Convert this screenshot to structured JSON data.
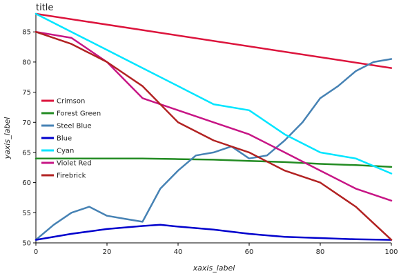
{
  "chart_data": {
    "type": "line",
    "title": "title",
    "xlabel": "xaxis_label",
    "ylabel": "yaxis_label",
    "xlim": [
      0,
      100
    ],
    "ylim": [
      50,
      88
    ],
    "x_ticks": [
      0,
      20,
      40,
      60,
      80,
      100
    ],
    "y_ticks": [
      50,
      55,
      60,
      65,
      70,
      75,
      80,
      85
    ],
    "grid": false,
    "legend_position": "left",
    "series": [
      {
        "name": "Crimson",
        "color": "#dc143c",
        "x": [
          0,
          100
        ],
        "y": [
          88,
          79
        ]
      },
      {
        "name": "Forest Green",
        "color": "#228b22",
        "x": [
          0,
          10,
          20,
          30,
          40,
          50,
          60,
          70,
          80,
          90,
          100
        ],
        "y": [
          64.0,
          64.0,
          64.0,
          64.0,
          63.9,
          63.8,
          63.6,
          63.4,
          63.1,
          62.9,
          62.6
        ]
      },
      {
        "name": "Steel Blue",
        "color": "#4682b4",
        "x": [
          0,
          5,
          10,
          15,
          20,
          25,
          30,
          35,
          40,
          45,
          50,
          55,
          60,
          65,
          70,
          75,
          80,
          85,
          90,
          95,
          100
        ],
        "y": [
          50.5,
          53.0,
          55.0,
          56.0,
          54.5,
          54.0,
          53.5,
          59.0,
          62.0,
          64.5,
          65.0,
          66.0,
          64.0,
          64.5,
          67.0,
          70.0,
          74.0,
          76.0,
          78.5,
          80.0,
          80.5
        ]
      },
      {
        "name": "Blue",
        "color": "#0000cd",
        "x": [
          0,
          10,
          20,
          30,
          35,
          40,
          50,
          60,
          70,
          80,
          90,
          100
        ],
        "y": [
          50.5,
          51.5,
          52.3,
          52.8,
          53.0,
          52.7,
          52.2,
          51.5,
          51.0,
          50.8,
          50.6,
          50.5
        ]
      },
      {
        "name": "Cyan",
        "color": "#00e5ff",
        "x": [
          0,
          10,
          20,
          30,
          40,
          50,
          60,
          70,
          80,
          90,
          100
        ],
        "y": [
          88.0,
          85.0,
          82.0,
          79.0,
          76.0,
          73.0,
          72.0,
          68.0,
          65.0,
          64.0,
          61.5
        ]
      },
      {
        "name": "Violet Red",
        "color": "#c71585",
        "x": [
          0,
          10,
          20,
          30,
          40,
          50,
          60,
          70,
          80,
          90,
          100
        ],
        "y": [
          85.0,
          84.0,
          80.0,
          74.0,
          72.0,
          70.0,
          68.0,
          65.0,
          62.0,
          59.0,
          57.0
        ]
      },
      {
        "name": "Firebrick",
        "color": "#b22222",
        "x": [
          0,
          10,
          20,
          30,
          40,
          50,
          60,
          70,
          80,
          90,
          100
        ],
        "y": [
          85.0,
          83.0,
          80.0,
          76.0,
          70.0,
          67.0,
          65.0,
          62.0,
          60.0,
          56.0,
          50.5
        ]
      }
    ]
  }
}
